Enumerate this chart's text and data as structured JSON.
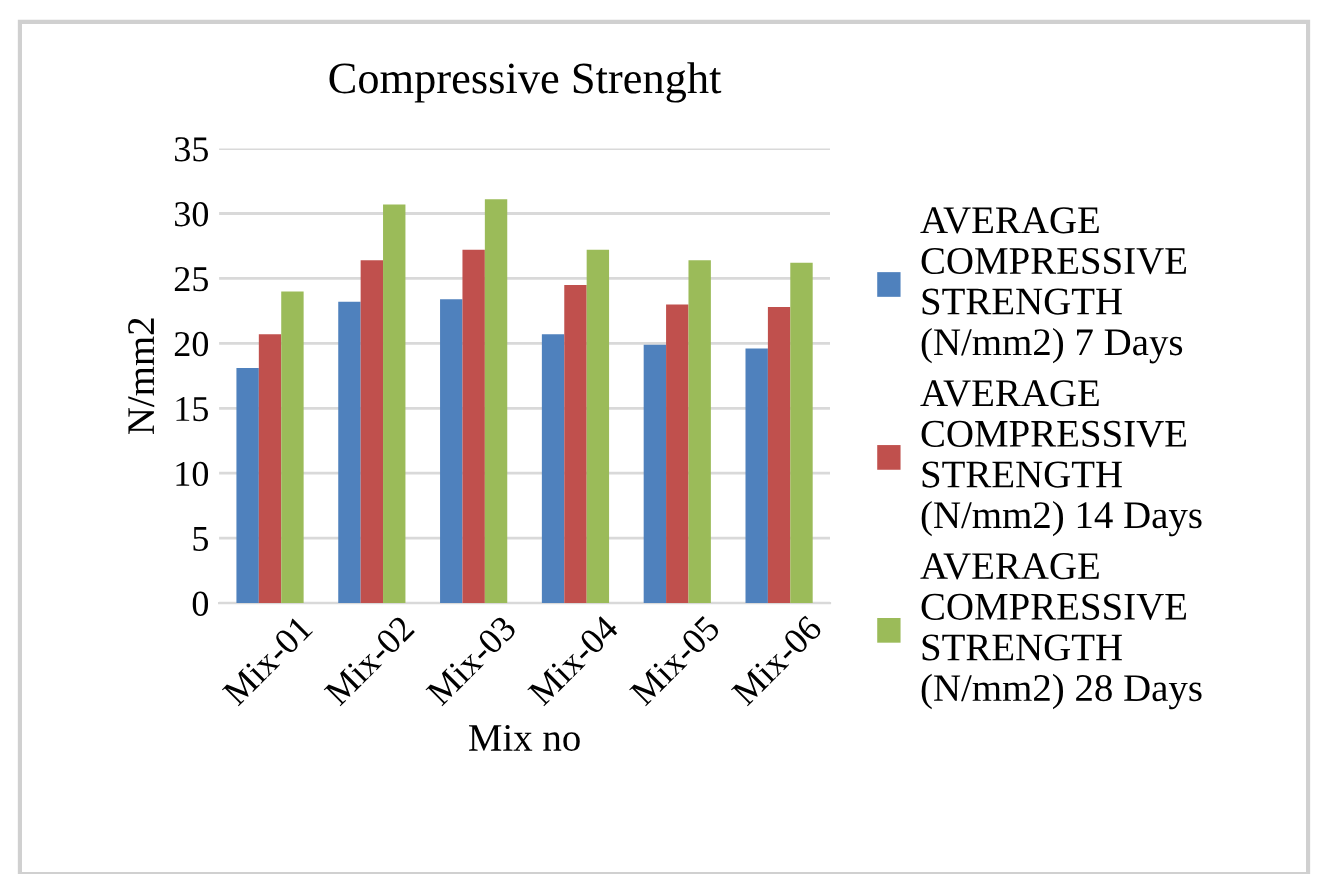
{
  "chart_data": {
    "type": "bar",
    "title": "Compressive Strenght",
    "xlabel": "Mix no",
    "ylabel": "N/mm2",
    "categories": [
      "Mix-01",
      "Mix-02",
      "Mix-03",
      "Mix-04",
      "Mix-05",
      "Mix-06"
    ],
    "series": [
      {
        "name": "AVERAGE COMPRESSIVE STRENGTH (N/mm2) 7 Days",
        "color": "#4f81bd",
        "values": [
          18.1,
          23.2,
          23.4,
          20.7,
          19.9,
          19.6
        ]
      },
      {
        "name": "AVERAGE COMPRESSIVE STRENGTH (N/mm2) 14 Days",
        "color": "#c0504d",
        "values": [
          20.7,
          26.4,
          27.2,
          24.5,
          23.0,
          22.8
        ]
      },
      {
        "name": "AVERAGE COMPRESSIVE STRENGTH (N/mm2) 28 Days",
        "color": "#9bbb59",
        "values": [
          24.0,
          30.7,
          31.1,
          27.2,
          26.4,
          26.2
        ]
      }
    ],
    "ylim": [
      0,
      35
    ],
    "yticks": [
      0,
      5,
      10,
      15,
      20,
      25,
      30,
      35
    ],
    "grid": "y",
    "legend": "right"
  }
}
